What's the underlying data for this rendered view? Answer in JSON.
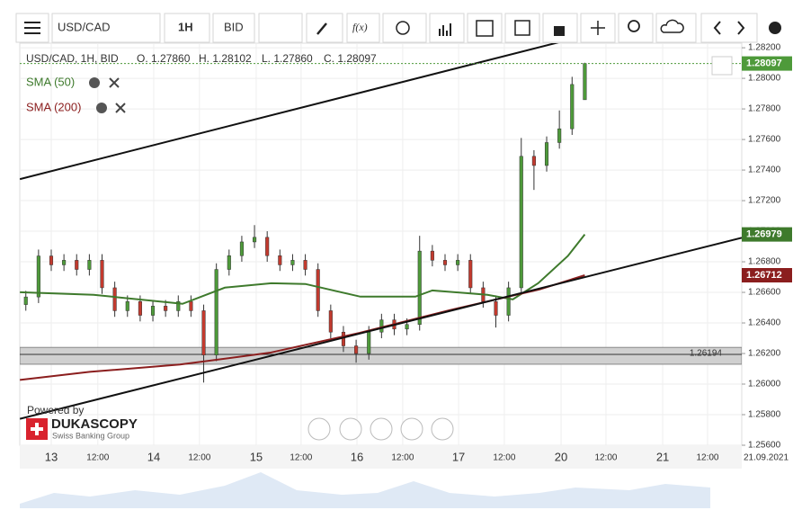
{
  "toolbar": {
    "symbol": "USD/CAD",
    "period": "1H",
    "side": "BID",
    "fx": "f(x)"
  },
  "header": {
    "instrument": "USD/CAD, 1H, BID",
    "open": "O. 1.27860",
    "high": "H. 1.28102",
    "low": "L. 1.27860",
    "close": "C. 1.28097"
  },
  "legend": [
    "SMA (50)",
    "SMA (200)"
  ],
  "branding": {
    "powered": "Powered by",
    "name": "DUKASCOPY",
    "tagline": "Swiss Banking Group"
  },
  "chart_data": {
    "type": "candlestick",
    "xlim": [
      -7.43,
      163.07
    ],
    "ylim": [
      1.256,
      1.2823
    ],
    "yticks": [
      {
        "value": 1.282,
        "label": "1.28200"
      },
      {
        "value": 1.28,
        "label": "1.28000"
      },
      {
        "value": 1.278,
        "label": "1.27800"
      },
      {
        "value": 1.276,
        "label": "1.27600"
      },
      {
        "value": 1.274,
        "label": "1.27400"
      },
      {
        "value": 1.272,
        "label": "1.27200"
      },
      {
        "value": 1.27,
        "label": "1.27000"
      },
      {
        "value": 1.268,
        "label": "1.26800"
      },
      {
        "value": 1.266,
        "label": "1.26600"
      },
      {
        "value": 1.264,
        "label": "1.26400"
      },
      {
        "value": 1.262,
        "label": "1.26200"
      },
      {
        "value": 1.26,
        "label": "1.26000"
      },
      {
        "value": 1.258,
        "label": "1.25800"
      },
      {
        "value": 1.256,
        "label": "1.25600"
      }
    ],
    "xticks": [
      {
        "value": 0,
        "label": "13"
      },
      {
        "value": 11,
        "label": "12:00"
      },
      {
        "value": 24.2,
        "label": "14"
      },
      {
        "value": 35,
        "label": "12:00"
      },
      {
        "value": 48.4,
        "label": "15"
      },
      {
        "value": 59,
        "label": "12:00"
      },
      {
        "value": 72.2,
        "label": "16"
      },
      {
        "value": 83,
        "label": "12:00"
      },
      {
        "value": 96.2,
        "label": "17"
      },
      {
        "value": 107,
        "label": "12:00"
      },
      {
        "value": 120.4,
        "label": "20"
      },
      {
        "value": 131,
        "label": "12:00"
      },
      {
        "value": 144.4,
        "label": "21"
      },
      {
        "value": 155,
        "label": "12:00"
      }
    ],
    "date_label": "21.09.2021",
    "up_color": "#4e9a3a",
    "down_color": "#c23a2e",
    "candles": {
      "x": [
        -6,
        -3,
        0,
        3,
        6,
        9,
        12,
        15,
        18,
        21,
        24,
        27,
        30,
        33,
        36,
        39,
        42,
        45,
        48,
        51,
        54,
        57,
        60,
        63,
        66,
        69,
        72,
        75,
        78,
        81,
        84,
        87,
        90,
        93,
        96,
        99,
        102,
        105,
        108,
        111,
        114,
        117,
        120,
        123,
        126
      ],
      "open": [
        1.2652,
        1.2657,
        1.26838,
        1.2678,
        1.2681,
        1.2675,
        1.2681,
        1.2663,
        1.2648,
        1.2654,
        1.2645,
        1.2651,
        1.2648,
        1.2654,
        1.2648,
        1.2619,
        1.2675,
        1.2684,
        1.2693,
        1.2696,
        1.2684,
        1.2678,
        1.2681,
        1.2675,
        1.2648,
        1.2634,
        1.2625,
        1.262,
        1.2634,
        1.2642,
        1.2636,
        1.2639,
        1.2687,
        1.2681,
        1.2678,
        1.2681,
        1.2663,
        1.2654,
        1.2645,
        1.2663,
        1.2749,
        1.2743,
        1.2758,
        1.2767,
        1.2786
      ],
      "high": [
        1.2661,
        1.2688,
        1.2688,
        1.2685,
        1.2685,
        1.2685,
        1.2685,
        1.2667,
        1.2658,
        1.2658,
        1.2655,
        1.2655,
        1.2658,
        1.2658,
        1.2652,
        1.2679,
        1.2688,
        1.2697,
        1.2704,
        1.27,
        1.2688,
        1.2685,
        1.2685,
        1.2679,
        1.2652,
        1.2638,
        1.2629,
        1.2638,
        1.2646,
        1.2646,
        1.2643,
        1.2697,
        1.2691,
        1.2685,
        1.2685,
        1.2685,
        1.2667,
        1.2658,
        1.2667,
        1.2761,
        1.2753,
        1.2762,
        1.2779,
        1.2801,
        1.28102
      ],
      "low": [
        1.2648,
        1.2653,
        1.2674,
        1.2674,
        1.2671,
        1.2671,
        1.2659,
        1.2644,
        1.2644,
        1.2641,
        1.2641,
        1.2644,
        1.2644,
        1.2644,
        1.2601,
        1.2615,
        1.2671,
        1.268,
        1.2689,
        1.268,
        1.2674,
        1.2674,
        1.2671,
        1.2644,
        1.263,
        1.2621,
        1.2614,
        1.2616,
        1.263,
        1.2632,
        1.2632,
        1.2635,
        1.2677,
        1.2674,
        1.2674,
        1.2659,
        1.265,
        1.2637,
        1.2641,
        1.2659,
        1.2727,
        1.2739,
        1.2754,
        1.2763,
        1.2786
      ],
      "close": [
        1.2657,
        1.26838,
        1.2678,
        1.2681,
        1.2675,
        1.2681,
        1.2663,
        1.2648,
        1.2654,
        1.2645,
        1.2651,
        1.2648,
        1.2654,
        1.2648,
        1.2619,
        1.2675,
        1.2684,
        1.2693,
        1.2696,
        1.2684,
        1.2678,
        1.2681,
        1.2675,
        1.2648,
        1.2634,
        1.2625,
        1.262,
        1.2634,
        1.2642,
        1.2636,
        1.2639,
        1.2687,
        1.2681,
        1.2678,
        1.2681,
        1.2663,
        1.2654,
        1.2645,
        1.2663,
        1.2749,
        1.2743,
        1.2758,
        1.2767,
        1.2796,
        1.28097
      ]
    },
    "series": [
      {
        "name": "SMA (50)",
        "color": "#3e7a2c",
        "x": [
          -7.4,
          10,
          31,
          41,
          52,
          60,
          73,
          86,
          90,
          103,
          109,
          115,
          122,
          126
        ],
        "values": [
          1.26601,
          1.26584,
          1.26525,
          1.26631,
          1.2666,
          1.26655,
          1.26572,
          1.26572,
          1.26613,
          1.26584,
          1.26554,
          1.2666,
          1.26838,
          1.26979
        ]
      },
      {
        "name": "SMA (200)",
        "color": "#8b1e1e",
        "x": [
          -7.4,
          9.1,
          30.4,
          51.6,
          72.8,
          94,
          115.3,
          126
        ],
        "values": [
          1.26027,
          1.2608,
          1.26128,
          1.26205,
          1.26335,
          1.26483,
          1.26619,
          1.26712
        ]
      }
    ],
    "trendlines": [
      {
        "x": [
          -7.4,
          120.6
        ],
        "y": [
          1.27341,
          1.28241
        ]
      },
      {
        "x": [
          -7.4,
          163.07
        ],
        "y": [
          1.25773,
          1.26957
        ]
      }
    ],
    "support_band": {
      "range": [
        1.2613,
        1.2624
      ],
      "level": 1.26194
    },
    "price_tags": [
      {
        "value": 1.28097,
        "color": "#4e9a3a"
      },
      {
        "value": 1.26979,
        "color": "#3e7a2c"
      },
      {
        "value": 1.26712,
        "color": "#8b1e1e"
      }
    ]
  }
}
